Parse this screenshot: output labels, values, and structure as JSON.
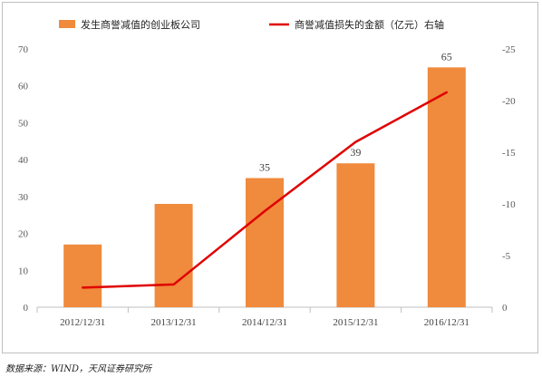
{
  "chart_data": {
    "type": "bar",
    "categories": [
      "2012/12/31",
      "2013/12/31",
      "2014/12/31",
      "2015/12/31",
      "2016/12/31"
    ],
    "series": [
      {
        "name": "发生商誉减值的创业板公司",
        "type": "bar",
        "axis": "left",
        "color": "#f08a3c",
        "values": [
          17,
          28,
          35,
          39,
          65
        ],
        "data_labels": [
          "",
          "",
          "35",
          "39",
          "65"
        ]
      },
      {
        "name": "商誉减值损失的金额（亿元）右轴",
        "type": "line",
        "axis": "right",
        "color": "#e00000",
        "values": [
          -1.9,
          -2.2,
          -9.3,
          -16.0,
          -20.8
        ]
      }
    ],
    "left_axis": {
      "min": 0,
      "max": 70,
      "step": 10,
      "ticks": [
        "0",
        "10",
        "20",
        "30",
        "40",
        "50",
        "60",
        "70"
      ]
    },
    "right_axis": {
      "min": 0,
      "max": -25,
      "step": -5,
      "reversed": true,
      "ticks": [
        "0",
        "-5",
        "-10",
        "-15",
        "-20",
        "-25"
      ]
    },
    "legend": "top",
    "grid": false,
    "title": "",
    "xlabel": "",
    "ylabel": ""
  },
  "source": "数据来源：WIND，天风证券研究所"
}
